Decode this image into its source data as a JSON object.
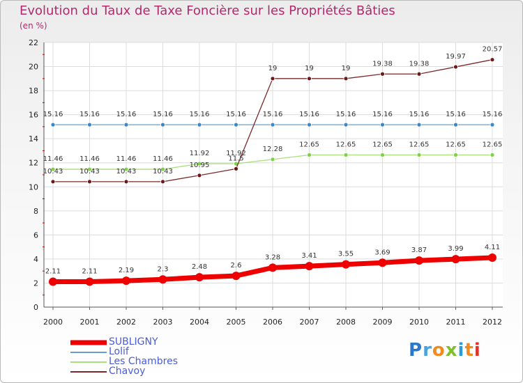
{
  "chart_data": {
    "type": "line",
    "title": "Evolution du Taux de Taxe Foncière sur les Propriétés Bâties",
    "unit_label": "(en %)",
    "xlabel": "",
    "ylabel": "",
    "ylim": [
      0,
      22
    ],
    "yticks": [
      "0",
      "2",
      "4",
      "6",
      "8",
      "10",
      "12",
      "14",
      "16",
      "18",
      "20",
      "22"
    ],
    "categories": [
      "2000",
      "2001",
      "2002",
      "2003",
      "2004",
      "2005",
      "2006",
      "2007",
      "2008",
      "2009",
      "2010",
      "2011",
      "2012"
    ],
    "series": [
      {
        "name": "SUBLIGNY",
        "color": "#ee0000",
        "values": [
          2.11,
          2.11,
          2.19,
          2.3,
          2.48,
          2.6,
          3.28,
          3.41,
          3.55,
          3.69,
          3.87,
          3.99,
          4.11
        ],
        "labels": [
          "2.11",
          "2.11",
          "2.19",
          "2.3",
          "2.48",
          "2.6",
          "3.28",
          "3.41",
          "3.55",
          "3.69",
          "3.87",
          "3.99",
          "4.11"
        ]
      },
      {
        "name": "Lolif",
        "color": "#6a9ec8",
        "values": [
          15.16,
          15.16,
          15.16,
          15.16,
          15.16,
          15.16,
          15.16,
          15.16,
          15.16,
          15.16,
          15.16,
          15.16,
          15.16
        ],
        "labels": [
          "15.16",
          "15.16",
          "15.16",
          "15.16",
          "15.16",
          "15.16",
          "15.16",
          "15.16",
          "15.16",
          "15.16",
          "15.16",
          "15.16",
          "15.16"
        ]
      },
      {
        "name": "Les Chambres",
        "color": "#a8e07a",
        "values": [
          11.46,
          11.46,
          11.46,
          11.46,
          11.92,
          11.92,
          12.28,
          12.65,
          12.65,
          12.65,
          12.65,
          12.65,
          12.65
        ],
        "labels": [
          "11.46",
          "11.46",
          "11.46",
          "11.46",
          "11.92",
          "11.92",
          "12.28",
          "12.65",
          "12.65",
          "12.65",
          "12.65",
          "12.65",
          "12.65"
        ]
      },
      {
        "name": "Chavoy",
        "color": "#7a2a2a",
        "values": [
          10.43,
          10.43,
          10.43,
          10.43,
          10.95,
          11.5,
          19,
          19,
          19,
          19.38,
          19.38,
          19.97,
          20.57
        ],
        "labels": [
          "10.43",
          "10.43",
          "10.43",
          "10.43",
          "10.95",
          "11.5",
          "19",
          "19",
          "19",
          "19.38",
          "19.38",
          "19.97",
          "20.57"
        ]
      }
    ],
    "legend_position": "bottom-left",
    "grid": true
  },
  "logo_text": "Proxiti"
}
